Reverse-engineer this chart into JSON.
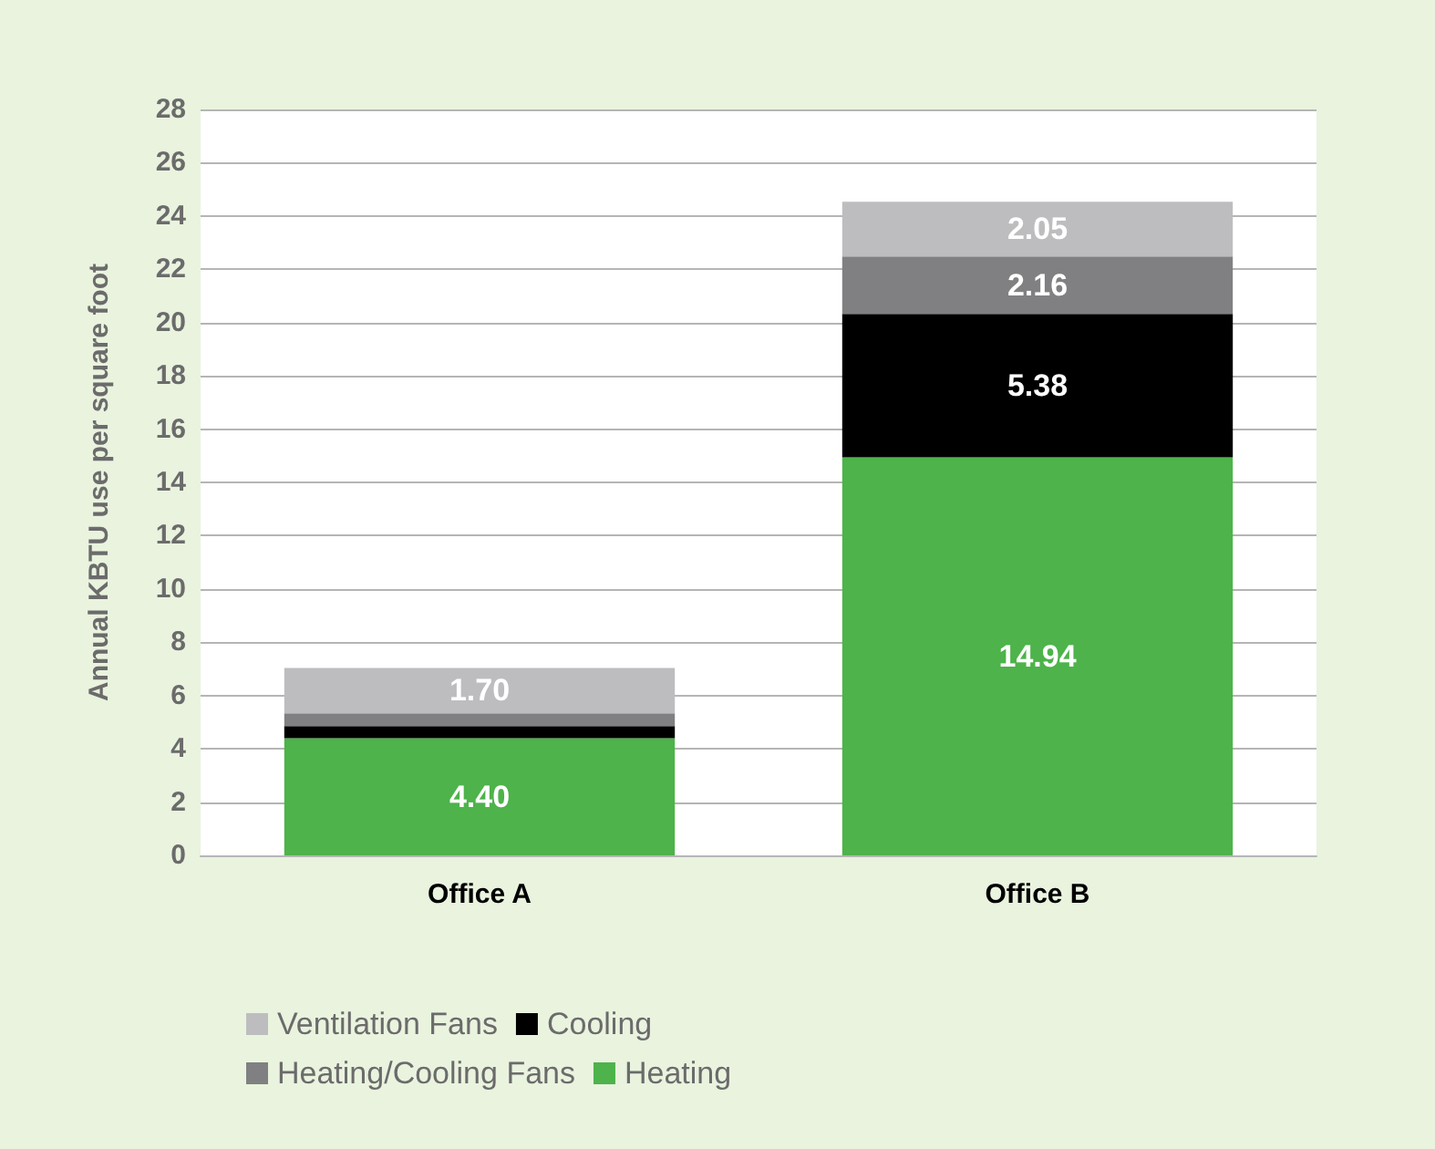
{
  "chart_data": {
    "type": "bar",
    "stacked": true,
    "ylabel": "Annual KBTU use per square foot",
    "categories": [
      "Office A",
      "Office B"
    ],
    "series": [
      {
        "name": "Heating",
        "color": "#4db34a",
        "values": [
          4.4,
          14.94
        ],
        "value_labels": [
          "4.40",
          "14.94"
        ]
      },
      {
        "name": "Cooling",
        "color": "#000000",
        "values": [
          0.45,
          5.38
        ],
        "value_labels": [
          null,
          "5.38"
        ]
      },
      {
        "name": "Heating/Cooling Fans",
        "color": "#808082",
        "values": [
          0.48,
          2.16
        ],
        "value_labels": [
          null,
          "2.16"
        ]
      },
      {
        "name": "Ventilation Fans",
        "color": "#bdbdc0",
        "values": [
          1.7,
          2.05
        ],
        "value_labels": [
          "1.70",
          "2.05"
        ]
      }
    ],
    "ylim": [
      0,
      28
    ],
    "yticks": [
      0,
      2,
      4,
      6,
      8,
      10,
      12,
      14,
      16,
      18,
      20,
      22,
      24,
      26,
      28
    ],
    "grid": "y",
    "legend": "bottom"
  }
}
